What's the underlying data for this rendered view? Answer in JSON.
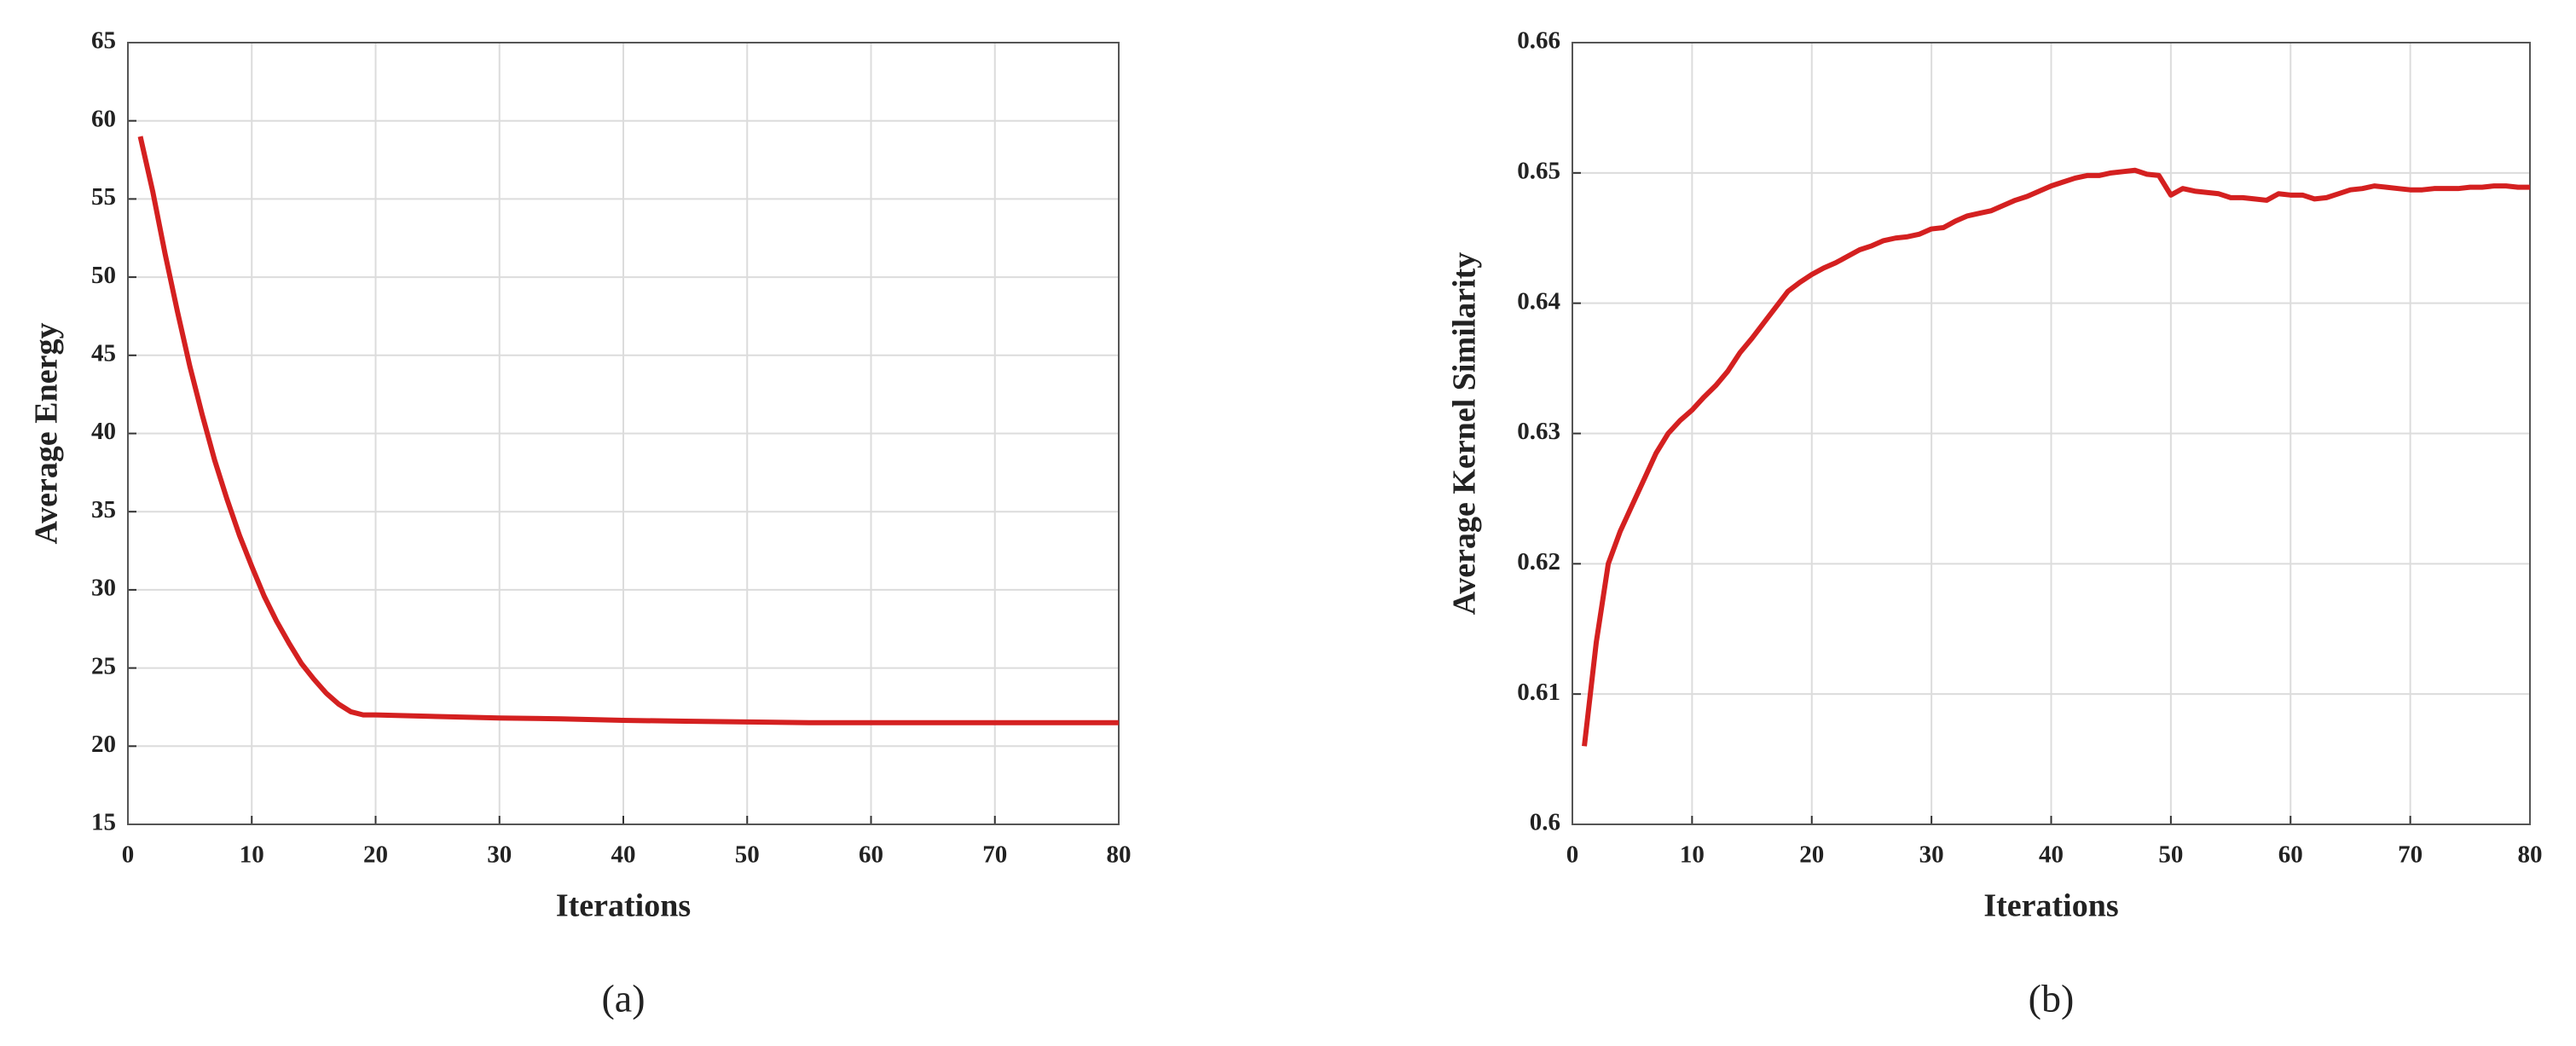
{
  "chart_data": [
    {
      "type": "line",
      "caption": "(a)",
      "xlabel": "Iterations",
      "ylabel": "Average Energy",
      "color": "#d42020",
      "grid": true,
      "x": [
        1,
        2,
        3,
        4,
        5,
        6,
        7,
        8,
        9,
        10,
        11,
        12,
        13,
        14,
        15,
        16,
        17,
        18,
        19,
        20,
        25,
        30,
        35,
        40,
        45,
        50,
        55,
        60,
        65,
        70,
        75,
        80
      ],
      "values": [
        59,
        55.5,
        51.5,
        47.8,
        44.3,
        41.2,
        38.3,
        35.8,
        33.5,
        31.5,
        29.6,
        28,
        26.6,
        25.3,
        24.3,
        23.4,
        22.7,
        22.2,
        22,
        22,
        21.9,
        21.8,
        21.75,
        21.65,
        21.6,
        21.55,
        21.5,
        21.5,
        21.5,
        21.5,
        21.5,
        21.5
      ],
      "xlim": [
        0,
        80
      ],
      "xticks": [
        0,
        10,
        20,
        30,
        40,
        50,
        60,
        70,
        80
      ],
      "ylim": [
        15,
        65
      ],
      "yticks": [
        15,
        20,
        25,
        30,
        35,
        40,
        45,
        50,
        55,
        60,
        65
      ]
    },
    {
      "type": "line",
      "caption": "(b)",
      "xlabel": "Iterations",
      "ylabel": "Average Kernel Similarity",
      "color": "#d42020",
      "grid": true,
      "x": [
        1,
        2,
        3,
        4,
        5,
        6,
        7,
        8,
        9,
        10,
        11,
        12,
        13,
        14,
        15,
        16,
        17,
        18,
        19,
        20,
        21,
        22,
        23,
        24,
        25,
        26,
        27,
        28,
        29,
        30,
        31,
        32,
        33,
        34,
        35,
        36,
        37,
        38,
        39,
        40,
        41,
        42,
        43,
        44,
        45,
        46,
        47,
        48,
        49,
        50,
        51,
        52,
        53,
        54,
        55,
        56,
        57,
        58,
        59,
        60,
        61,
        62,
        63,
        64,
        65,
        66,
        67,
        68,
        69,
        70,
        71,
        72,
        73,
        74,
        75,
        76,
        77,
        78,
        79,
        80
      ],
      "values": [
        0.606,
        0.614,
        0.62,
        0.6225,
        0.6245,
        0.6265,
        0.6285,
        0.63,
        0.631,
        0.6318,
        0.6328,
        0.6337,
        0.6348,
        0.6362,
        0.6373,
        0.6385,
        0.6397,
        0.6409,
        0.6416,
        0.6422,
        0.6427,
        0.6431,
        0.6436,
        0.6441,
        0.6444,
        0.6448,
        0.645,
        0.6451,
        0.6453,
        0.6457,
        0.6458,
        0.6463,
        0.6467,
        0.6469,
        0.6471,
        0.6475,
        0.6479,
        0.6482,
        0.6486,
        0.649,
        0.6493,
        0.6496,
        0.6498,
        0.6498,
        0.65,
        0.6501,
        0.6502,
        0.6499,
        0.6498,
        0.6483,
        0.6488,
        0.6486,
        0.6485,
        0.6484,
        0.6481,
        0.6481,
        0.648,
        0.6479,
        0.6484,
        0.6483,
        0.6483,
        0.648,
        0.6481,
        0.6484,
        0.6487,
        0.6488,
        0.649,
        0.6489,
        0.6488,
        0.6487,
        0.6487,
        0.6488,
        0.6488,
        0.6488,
        0.6489,
        0.6489,
        0.649,
        0.649,
        0.6489,
        0.6489
      ],
      "xlim": [
        0,
        80
      ],
      "xticks": [
        0,
        10,
        20,
        30,
        40,
        50,
        60,
        70,
        80
      ],
      "ylim": [
        0.6,
        0.66
      ],
      "yticks": [
        0.6,
        0.61,
        0.62,
        0.63,
        0.64,
        0.65,
        0.66
      ]
    }
  ]
}
